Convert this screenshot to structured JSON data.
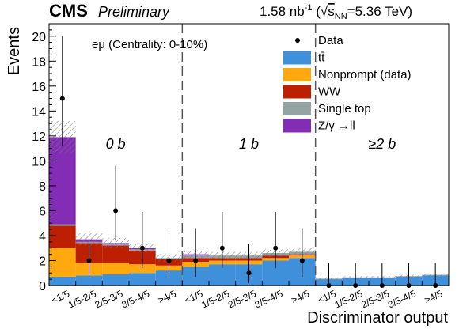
{
  "header": {
    "cms_label": "CMS",
    "preliminary_label": "Preliminary",
    "lumi_value": "1.58 nb",
    "lumi_exponent": "-1",
    "energy_sqrt": "s",
    "energy_sub": "NN",
    "energy_value": "=5.36 TeV"
  },
  "chart_data": {
    "type": "bar",
    "stacked": true,
    "ylabel": "Events",
    "xlabel": "Discriminator output",
    "ylim": [
      0,
      21
    ],
    "yticks": [
      0,
      2,
      4,
      6,
      8,
      10,
      12,
      14,
      16,
      18,
      20
    ],
    "selection_label": "eμ (Centrality: 0-10%)",
    "categories": [
      "<1/5",
      "1/5-2/5",
      "2/5-3/5",
      "3/5-4/5",
      ">4/5",
      "<1/5",
      "1/5-2/5",
      "2/5-3/5",
      "3/5-4/5",
      ">4/5",
      "<1/5",
      "1/5-2/5",
      "2/5-3/5",
      "3/5-4/5",
      ">4/5"
    ],
    "regions": [
      {
        "label": "0 b",
        "bins": [
          0,
          4
        ]
      },
      {
        "label": "1 b",
        "bins": [
          5,
          9
        ]
      },
      {
        "label": "≥2 b",
        "bins": [
          10,
          14
        ]
      }
    ],
    "series": [
      {
        "name": "tt̄",
        "color": "#3f90da",
        "values": [
          0.7,
          0.8,
          0.9,
          1.0,
          1.2,
          1.5,
          1.7,
          1.7,
          2.0,
          2.2,
          0.5,
          0.6,
          0.6,
          0.7,
          0.8
        ]
      },
      {
        "name": "Nonprompt (data)",
        "color": "#ffa90e",
        "values": [
          2.3,
          1.0,
          0.9,
          0.7,
          0.4,
          0.4,
          0.3,
          0.3,
          0.2,
          0.2,
          0.0,
          0.0,
          0.0,
          0.0,
          0.0
        ]
      },
      {
        "name": "WW",
        "color": "#bd1f01",
        "values": [
          1.8,
          1.6,
          1.4,
          1.1,
          0.5,
          0.3,
          0.2,
          0.2,
          0.2,
          0.1,
          0.0,
          0.0,
          0.0,
          0.0,
          0.0
        ]
      },
      {
        "name": "Single top",
        "color": "#94a4a2",
        "values": [
          0.1,
          0.1,
          0.1,
          0.1,
          0.1,
          0.2,
          0.2,
          0.2,
          0.2,
          0.2,
          0.05,
          0.05,
          0.05,
          0.05,
          0.05
        ]
      },
      {
        "name": "Z/γ →ll",
        "color": "#832db6",
        "values": [
          7.0,
          0.2,
          0.1,
          0.1,
          0.0,
          0.1,
          0.0,
          0.0,
          0.0,
          0.0,
          0.0,
          0.0,
          0.0,
          0.0,
          0.0
        ]
      }
    ],
    "uncertainty": [
      1.3,
      0.5,
      0.4,
      0.35,
      0.3,
      0.3,
      0.3,
      0.3,
      0.3,
      0.3,
      0.1,
      0.1,
      0.1,
      0.1,
      0.1
    ],
    "data": {
      "name": "Data",
      "values": [
        15,
        2,
        6,
        3,
        2,
        2,
        3,
        1,
        3,
        2,
        0,
        0,
        0,
        0,
        0
      ],
      "err_up": [
        5.0,
        2.6,
        3.6,
        2.9,
        2.6,
        2.6,
        2.9,
        2.3,
        2.9,
        2.6,
        1.8,
        1.8,
        1.8,
        1.8,
        1.8
      ],
      "err_down": [
        3.8,
        1.3,
        2.4,
        1.6,
        1.3,
        1.3,
        1.6,
        0.8,
        1.6,
        1.3,
        0.0,
        0.0,
        0.0,
        0.0,
        0.0
      ]
    },
    "legend_position": "top-right",
    "grid": false
  }
}
